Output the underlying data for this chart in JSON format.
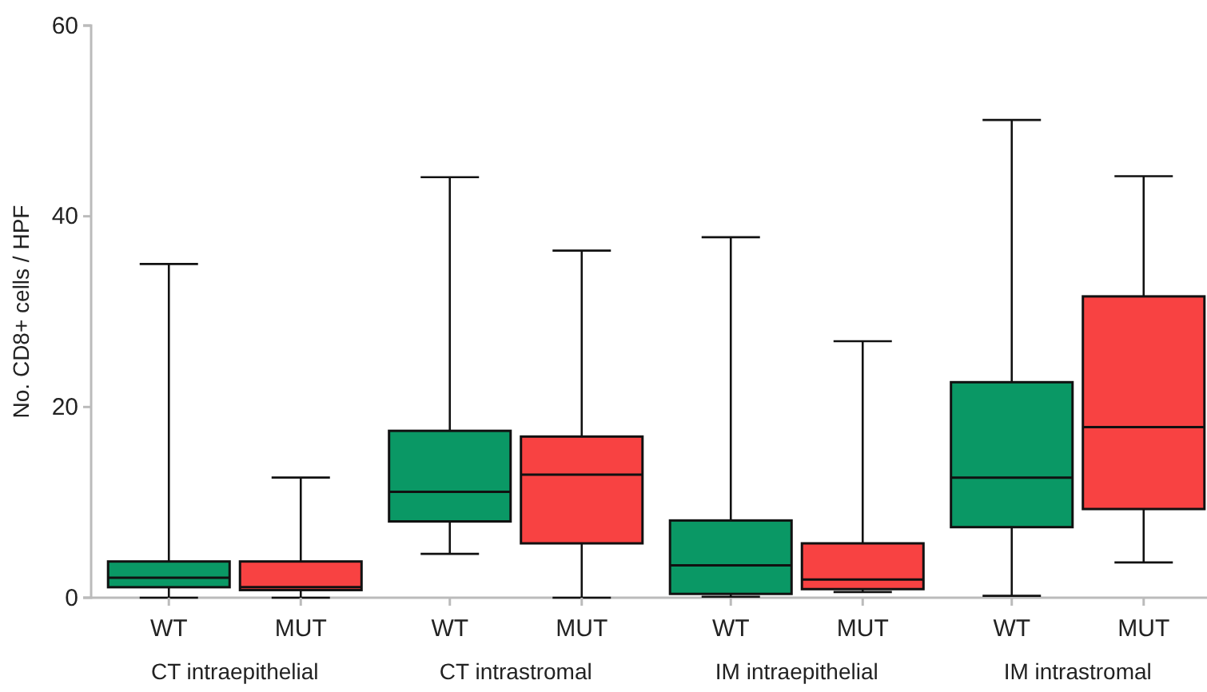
{
  "chart_data": {
    "type": "box",
    "ylabel": "No. CD8+ cells / HPF",
    "categories": [
      "CT intraepithelial",
      "CT intrastromal",
      "IM intraepithelial",
      "IM intrastromal"
    ],
    "ylim": [
      0,
      60
    ],
    "yticks": [
      0,
      20,
      40,
      60
    ],
    "grid": false,
    "legend": false,
    "series": [
      {
        "name": "WT",
        "color": "#0a9865",
        "boxes": [
          {
            "low": 0,
            "q1": 1.1,
            "median": 2.1,
            "q3": 3.8,
            "high": 35.0
          },
          {
            "low": 4.6,
            "q1": 8.0,
            "median": 11.1,
            "q3": 17.5,
            "high": 44.1
          },
          {
            "low": 0.1,
            "q1": 0.4,
            "median": 3.4,
            "q3": 8.1,
            "high": 37.8
          },
          {
            "low": 0.2,
            "q1": 7.4,
            "median": 12.6,
            "q3": 22.6,
            "high": 50.1
          }
        ]
      },
      {
        "name": "MUT",
        "color": "#f84242",
        "boxes": [
          {
            "low": 0,
            "q1": 0.8,
            "median": 1.1,
            "q3": 3.8,
            "high": 12.6
          },
          {
            "low": 0,
            "q1": 5.7,
            "median": 12.9,
            "q3": 16.9,
            "high": 36.4
          },
          {
            "low": 0.6,
            "q1": 0.9,
            "median": 1.9,
            "q3": 5.7,
            "high": 26.9
          },
          {
            "low": 3.7,
            "q1": 9.3,
            "median": 17.9,
            "q3": 31.6,
            "high": 44.2
          }
        ]
      }
    ]
  }
}
